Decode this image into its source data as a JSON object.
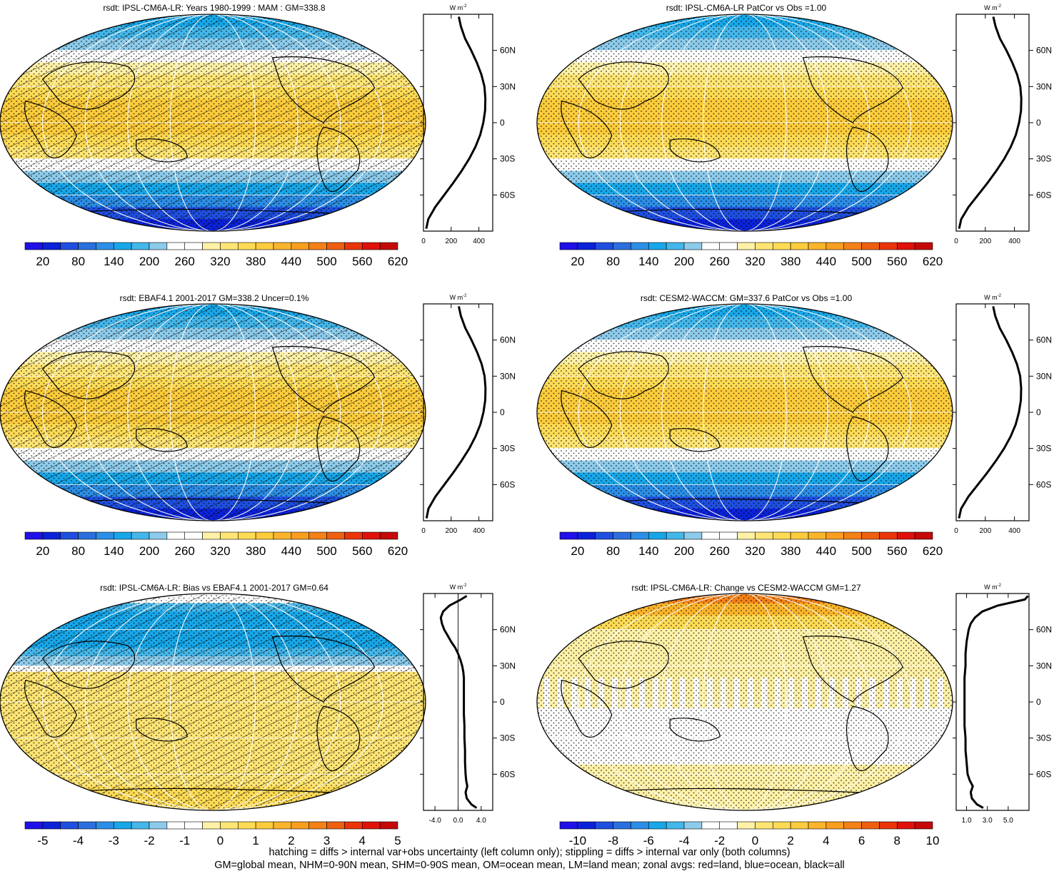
{
  "figure": {
    "footer": [
      "hatching = diffs > internal var+obs uncertainty (left column only); stippling = diffs > internal var only (both columns)",
      "GM=global mean, NHM=0-90N mean, SHM=0-90S mean, OM=ocean mean, LM=land mean; zonal avgs: red=land, blue=ocean, black=all"
    ],
    "zonal_unit": "W m",
    "zonal_unit_sup": "-2",
    "colors": {
      "abs_scale": [
        "#2010e8",
        "#0b22d9",
        "#1f4fe0",
        "#2a6fdd",
        "#2c8ee6",
        "#17a7e9",
        "#44b7ea",
        "#8ccbeb",
        "#ffffff",
        "#ffffff",
        "#fff1a6",
        "#ffe574",
        "#fedb55",
        "#fdcc3c",
        "#fbb52c",
        "#f99e1f",
        "#f48117",
        "#ef5f10",
        "#ea3509",
        "#e0100a",
        "#c50808"
      ],
      "diff_scale": [
        "#2010e8",
        "#0b22d9",
        "#1f4fe0",
        "#2a6fdd",
        "#2c8ee6",
        "#17a7e9",
        "#44b7ea",
        "#8ccbeb",
        "#ffffff",
        "#ffffff",
        "#fff1a6",
        "#ffe574",
        "#fedb55",
        "#fdcc3c",
        "#fbb52c",
        "#f99e1f",
        "#f48117",
        "#ef5f10",
        "#ea3509",
        "#e0100a",
        "#c50808"
      ]
    }
  },
  "chart_data": [
    {
      "type": "heatmap",
      "title": "rsdt: IPSL-CM6A-LR: Years 1980-1999 : MAM : GM=338.8",
      "colorbar_labels": [
        "20",
        "80",
        "140",
        "200",
        "260",
        "320",
        "380",
        "440",
        "500",
        "560",
        "620"
      ],
      "zonal_ticks": [
        "0",
        "200",
        "400"
      ],
      "zonal_xlim": [
        0,
        500
      ],
      "lat_labels": [
        "60N",
        "30N",
        "0",
        "30S",
        "60S"
      ],
      "zonal_mean": {
        "lat": [
          88,
          80,
          70,
          60,
          50,
          40,
          30,
          20,
          10,
          0,
          -10,
          -20,
          -30,
          -40,
          -50,
          -60,
          -70,
          -80,
          -88
        ],
        "values": [
          255,
          270,
          300,
          345,
          385,
          418,
          440,
          447,
          445,
          432,
          410,
          375,
          330,
          275,
          215,
          150,
          85,
          35,
          20
        ]
      },
      "hatching": true
    },
    {
      "type": "heatmap",
      "title": "rsdt: IPSL-CM6A-LR PatCor vs Obs =1.00",
      "colorbar_labels": [
        "20",
        "80",
        "140",
        "200",
        "260",
        "320",
        "380",
        "440",
        "500",
        "560",
        "620"
      ],
      "zonal_ticks": [
        "0",
        "200",
        "400"
      ],
      "zonal_xlim": [
        0,
        500
      ],
      "lat_labels": [
        "60N",
        "30N",
        "0",
        "30S",
        "60S"
      ],
      "zonal_mean": {
        "lat": [
          88,
          80,
          70,
          60,
          50,
          40,
          30,
          20,
          10,
          0,
          -10,
          -20,
          -30,
          -40,
          -50,
          -60,
          -70,
          -80,
          -88
        ],
        "values": [
          255,
          270,
          300,
          345,
          385,
          418,
          440,
          447,
          445,
          432,
          410,
          375,
          330,
          275,
          215,
          150,
          85,
          35,
          20
        ]
      },
      "hatching": false
    },
    {
      "type": "heatmap",
      "title": "rsdt: EBAF4.1 2001-2017 GM=338.2 Uncer=0.1%",
      "colorbar_labels": [
        "20",
        "80",
        "140",
        "200",
        "260",
        "320",
        "380",
        "440",
        "500",
        "560",
        "620"
      ],
      "zonal_ticks": [
        "0",
        "200",
        "400"
      ],
      "zonal_xlim": [
        0,
        500
      ],
      "lat_labels": [
        "60N",
        "30N",
        "0",
        "30S",
        "60S"
      ],
      "zonal_mean": {
        "lat": [
          88,
          80,
          70,
          60,
          50,
          40,
          30,
          20,
          10,
          0,
          -10,
          -20,
          -30,
          -40,
          -50,
          -60,
          -70,
          -80,
          -88
        ],
        "values": [
          255,
          270,
          302,
          347,
          387,
          420,
          441,
          448,
          446,
          433,
          411,
          376,
          331,
          276,
          216,
          151,
          86,
          36,
          22
        ]
      },
      "hatching": true
    },
    {
      "type": "heatmap",
      "title": "rsdt: CESM2-WACCM: GM=337.6 PatCor vs Obs =1.00",
      "colorbar_labels": [
        "20",
        "80",
        "140",
        "200",
        "260",
        "320",
        "380",
        "440",
        "500",
        "560",
        "620"
      ],
      "zonal_ticks": [
        "0",
        "200",
        "400"
      ],
      "zonal_xlim": [
        0,
        500
      ],
      "lat_labels": [
        "60N",
        "30N",
        "0",
        "30S",
        "60S"
      ],
      "zonal_mean": {
        "lat": [
          88,
          80,
          70,
          60,
          50,
          40,
          30,
          20,
          10,
          0,
          -10,
          -20,
          -30,
          -40,
          -50,
          -60,
          -70,
          -80,
          -88
        ],
        "values": [
          254,
          268,
          299,
          344,
          384,
          417,
          439,
          446,
          444,
          431,
          409,
          374,
          329,
          274,
          214,
          149,
          84,
          34,
          19
        ]
      },
      "hatching": false
    },
    {
      "type": "heatmap",
      "title": "rsdt: IPSL-CM6A-LR: Bias vs EBAF4.1 2001-2017 GM=0.64",
      "colorbar_labels": [
        "-5",
        "-4",
        "-3",
        "-2",
        "-1",
        "0",
        "1",
        "2",
        "3",
        "4",
        "5"
      ],
      "zonal_ticks": [
        "-4.0",
        "0.0",
        "4.0"
      ],
      "zonal_xlim": [
        -6,
        6
      ],
      "zonal_zero_line": true,
      "lat_labels": [
        "60N",
        "30N",
        "0",
        "30S",
        "60S"
      ],
      "zonal_mean": {
        "lat": [
          88,
          85,
          80,
          75,
          70,
          65,
          60,
          55,
          50,
          45,
          40,
          35,
          30,
          25,
          20,
          10,
          0,
          -10,
          -20,
          -30,
          -40,
          -50,
          -60,
          -65,
          -70,
          -75,
          -80,
          -85,
          -88
        ],
        "values": [
          1.5,
          0.5,
          -1.5,
          -2.6,
          -3.0,
          -2.8,
          -2.4,
          -1.8,
          -1.2,
          -0.5,
          0.0,
          0.4,
          0.7,
          0.9,
          1.0,
          1.0,
          1.0,
          1.0,
          1.1,
          1.1,
          1.2,
          1.2,
          1.3,
          1.4,
          1.6,
          1.3,
          1.5,
          2.3,
          3.2
        ]
      },
      "hatching": true
    },
    {
      "type": "heatmap",
      "title": "rsdt: IPSL-CM6A-LR: Change vs CESM2-WACCM GM=1.27",
      "colorbar_labels": [
        "-10",
        "-8",
        "-6",
        "-4",
        "-2",
        "0",
        "2",
        "4",
        "6",
        "8",
        "10"
      ],
      "zonal_ticks": [
        "1.0",
        "3.0",
        "5.0"
      ],
      "zonal_xlim": [
        0,
        7
      ],
      "lat_labels": [
        "60N",
        "30N",
        "0",
        "30S",
        "60S"
      ],
      "zonal_mean": {
        "lat": [
          88,
          85,
          80,
          75,
          70,
          65,
          60,
          50,
          40,
          30,
          20,
          10,
          0,
          -10,
          -20,
          -30,
          -40,
          -50,
          -60,
          -65,
          -70,
          -75,
          -80,
          -85,
          -88
        ],
        "values": [
          6.9,
          6.6,
          4.0,
          2.5,
          1.8,
          1.4,
          1.2,
          1.0,
          0.9,
          0.9,
          0.8,
          0.8,
          0.8,
          0.8,
          0.8,
          0.9,
          0.9,
          1.0,
          1.1,
          1.3,
          1.6,
          1.4,
          1.5,
          2.0,
          2.6
        ]
      },
      "hatching": false
    }
  ]
}
